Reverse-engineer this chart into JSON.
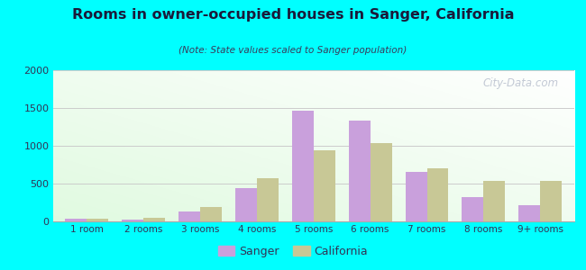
{
  "title": "Rooms in owner-occupied houses in Sanger, California",
  "subtitle": "(Note: State values scaled to Sanger population)",
  "categories": [
    "1 room",
    "2 rooms",
    "3 rooms",
    "4 rooms",
    "5 rooms",
    "6 rooms",
    "7 rooms",
    "8 rooms",
    "9+ rooms"
  ],
  "sanger_values": [
    30,
    20,
    130,
    440,
    1470,
    1330,
    650,
    320,
    215
  ],
  "california_values": [
    30,
    50,
    185,
    570,
    940,
    1040,
    700,
    540,
    540
  ],
  "sanger_color": "#c9a0dc",
  "california_color": "#c8c896",
  "background_color": "#00ffff",
  "title_color": "#1a1a3a",
  "subtitle_color": "#3a3a5a",
  "tick_label_color": "#333355",
  "ylim": [
    0,
    2000
  ],
  "yticks": [
    0,
    500,
    1000,
    1500,
    2000
  ],
  "bar_width": 0.38,
  "legend_sanger": "Sanger",
  "legend_california": "California",
  "watermark": "City-Data.com"
}
